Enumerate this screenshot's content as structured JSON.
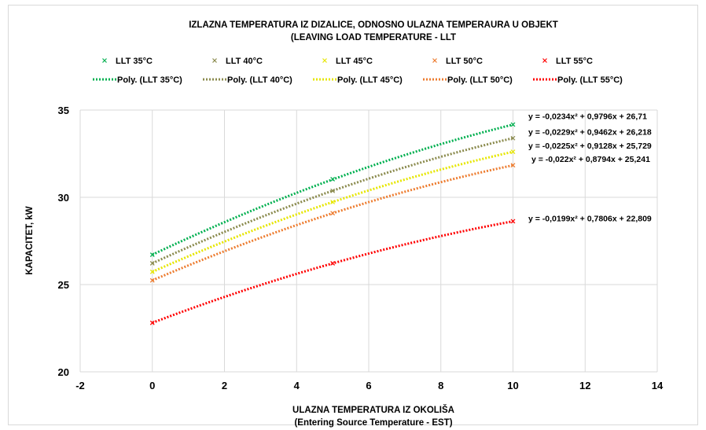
{
  "chart_data": {
    "type": "scatter",
    "title": "IZLAZNA TEMPERATURA IZ DIZALICE, ODNOSNO ULAZNA TEMPERAURA U OBJEKT",
    "subtitle": "(LEAVING LOAD TEMPERATURE - LLT",
    "xlabel": "ULAZNA TEMPERATURA IZ OKOLIŠA",
    "xlabel2": "(Entering Source Temperature - EST)",
    "ylabel": "KAPACITET, kW",
    "xlim": [
      -2,
      14
    ],
    "ylim": [
      20,
      35
    ],
    "xticks": [
      "-2",
      "0",
      "2",
      "4",
      "6",
      "8",
      "10",
      "12",
      "14"
    ],
    "yticks": [
      "20",
      "25",
      "30",
      "35"
    ],
    "grid": true,
    "legend_position": "top",
    "series": [
      {
        "name": "LLT 35°C",
        "trend_name": "Poly. (LLT 35°C)",
        "color": "#00B050",
        "x": [
          0,
          5,
          10
        ],
        "y": [
          26.71,
          31.04,
          34.17
        ],
        "coef": [
          -0.0234,
          0.9796,
          26.71
        ],
        "equation": "y = -0,0234x² + 0,9796x + 26,71"
      },
      {
        "name": "LLT 40°C",
        "trend_name": "Poly. (LLT 40°C)",
        "color": "#8B8B4E",
        "x": [
          0,
          5,
          10
        ],
        "y": [
          26.218,
          30.37,
          33.39
        ],
        "coef": [
          -0.0229,
          0.9462,
          26.218
        ],
        "equation": "y = -0,0229x² + 0,9462x + 26,218"
      },
      {
        "name": "LLT 45°C",
        "trend_name": "Poly. (LLT 45°C)",
        "color": "#E6E600",
        "x": [
          0,
          5,
          10
        ],
        "y": [
          25.729,
          29.73,
          32.61
        ],
        "coef": [
          -0.0225,
          0.9128,
          25.729
        ],
        "equation": "y = -0,0225x² + 0,9128x + 25,729"
      },
      {
        "name": "LLT 50°C",
        "trend_name": "Poly. (LLT 50°C)",
        "color": "#ED7D31",
        "x": [
          0,
          5,
          10
        ],
        "y": [
          25.241,
          29.09,
          31.84
        ],
        "coef": [
          -0.022,
          0.8794,
          25.241
        ],
        "equation": "y = -0,022x² + 0,8794x + 25,241"
      },
      {
        "name": "LLT 55°C",
        "trend_name": "Poly. (LLT 55°C)",
        "color": "#FF0000",
        "x": [
          0,
          5,
          10
        ],
        "y": [
          22.809,
          26.22,
          28.63
        ],
        "coef": [
          -0.0199,
          0.7806,
          22.809
        ],
        "equation": "y = -0,0199x² + 0,7806x + 22,809"
      }
    ]
  }
}
